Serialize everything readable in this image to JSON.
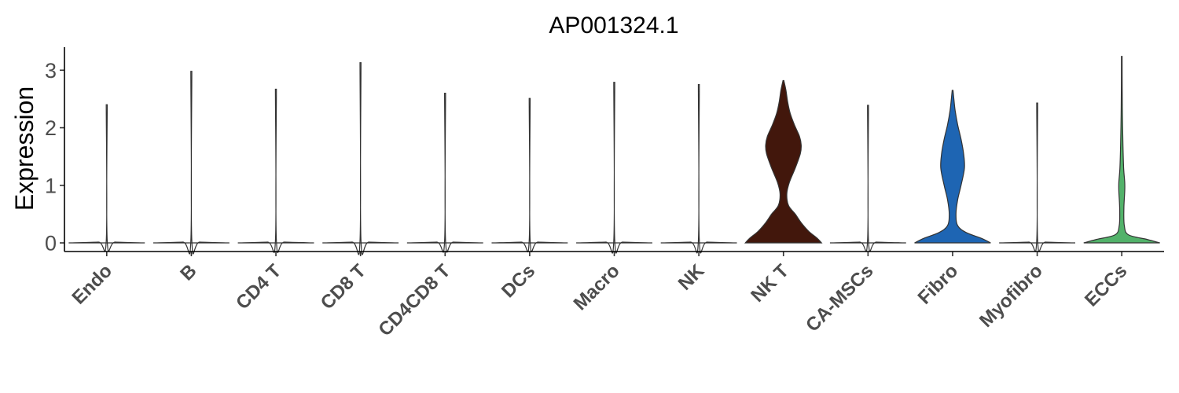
{
  "chart_data": {
    "type": "violin",
    "title": "AP001324.1",
    "xlabel": "",
    "ylabel": "Expression",
    "ylim": [
      -0.15,
      3.4
    ],
    "yticks": [
      0,
      1,
      2,
      3
    ],
    "grid": false,
    "legend": "none",
    "categories": [
      "Endo",
      "B",
      "CD4 T",
      "CD8 T",
      "CD4CD8 T",
      "DCs",
      "Macro",
      "NK",
      "NK T",
      "CA-MSCs",
      "Fibro",
      "Myofibro",
      "ECCs"
    ],
    "series": [
      {
        "category": "Endo",
        "color": "#ffffff",
        "max": 2.4,
        "profile": [
          [
            0.0,
            0.45
          ],
          [
            0.015,
            0.1
          ],
          [
            0.03,
            0.006
          ],
          [
            2.4,
            0.006
          ]
        ]
      },
      {
        "category": "B",
        "color": "#ffffff",
        "max": 2.98,
        "profile": [
          [
            0.0,
            0.45
          ],
          [
            0.015,
            0.1
          ],
          [
            0.03,
            0.006
          ],
          [
            2.98,
            0.006
          ]
        ]
      },
      {
        "category": "CD4 T",
        "color": "#ffffff",
        "max": 2.67,
        "profile": [
          [
            0.0,
            0.45
          ],
          [
            0.015,
            0.1
          ],
          [
            0.03,
            0.006
          ],
          [
            2.67,
            0.006
          ]
        ]
      },
      {
        "category": "CD8 T",
        "color": "#ffffff",
        "max": 3.13,
        "profile": [
          [
            0.0,
            0.45
          ],
          [
            0.015,
            0.1
          ],
          [
            0.03,
            0.006
          ],
          [
            3.13,
            0.006
          ]
        ]
      },
      {
        "category": "CD4CD8 T",
        "color": "#ffffff",
        "max": 2.6,
        "profile": [
          [
            0.0,
            0.45
          ],
          [
            0.015,
            0.1
          ],
          [
            0.03,
            0.006
          ],
          [
            2.6,
            0.006
          ]
        ]
      },
      {
        "category": "DCs",
        "color": "#ffffff",
        "max": 2.51,
        "profile": [
          [
            0.0,
            0.45
          ],
          [
            0.015,
            0.1
          ],
          [
            0.03,
            0.006
          ],
          [
            2.51,
            0.006
          ]
        ]
      },
      {
        "category": "Macro",
        "color": "#ffffff",
        "max": 2.79,
        "profile": [
          [
            0.0,
            0.45
          ],
          [
            0.015,
            0.1
          ],
          [
            0.03,
            0.006
          ],
          [
            2.79,
            0.006
          ]
        ]
      },
      {
        "category": "NK",
        "color": "#ffffff",
        "max": 2.75,
        "profile": [
          [
            0.0,
            0.45
          ],
          [
            0.015,
            0.1
          ],
          [
            0.03,
            0.006
          ],
          [
            2.75,
            0.006
          ]
        ]
      },
      {
        "category": "NK T",
        "color": "#42170c",
        "max": 2.82,
        "profile": [
          [
            0.0,
            0.45
          ],
          [
            0.08,
            0.4
          ],
          [
            0.2,
            0.3
          ],
          [
            0.35,
            0.21
          ],
          [
            0.5,
            0.14
          ],
          [
            0.65,
            0.06
          ],
          [
            0.85,
            0.04
          ],
          [
            1.05,
            0.07
          ],
          [
            1.3,
            0.14
          ],
          [
            1.55,
            0.2
          ],
          [
            1.7,
            0.21
          ],
          [
            1.85,
            0.19
          ],
          [
            2.05,
            0.13
          ],
          [
            2.25,
            0.08
          ],
          [
            2.45,
            0.05
          ],
          [
            2.65,
            0.03
          ],
          [
            2.82,
            0.005
          ]
        ]
      },
      {
        "category": "CA-MSCs",
        "color": "#ffffff",
        "max": 2.39,
        "profile": [
          [
            0.0,
            0.45
          ],
          [
            0.015,
            0.1
          ],
          [
            0.03,
            0.006
          ],
          [
            2.39,
            0.006
          ]
        ]
      },
      {
        "category": "Fibro",
        "color": "#1e65b3",
        "max": 2.65,
        "profile": [
          [
            0.0,
            0.45
          ],
          [
            0.08,
            0.34
          ],
          [
            0.18,
            0.16
          ],
          [
            0.3,
            0.06
          ],
          [
            0.5,
            0.04
          ],
          [
            0.75,
            0.06
          ],
          [
            1.0,
            0.1
          ],
          [
            1.3,
            0.14
          ],
          [
            1.55,
            0.13
          ],
          [
            1.8,
            0.1
          ],
          [
            2.05,
            0.06
          ],
          [
            2.3,
            0.03
          ],
          [
            2.5,
            0.015
          ],
          [
            2.65,
            0.005
          ]
        ]
      },
      {
        "category": "Myofibro",
        "color": "#ffffff",
        "max": 2.43,
        "profile": [
          [
            0.0,
            0.45
          ],
          [
            0.015,
            0.1
          ],
          [
            0.03,
            0.006
          ],
          [
            2.43,
            0.006
          ]
        ]
      },
      {
        "category": "ECCs",
        "color": "#52b26a",
        "max": 3.24,
        "profile": [
          [
            0.0,
            0.45
          ],
          [
            0.06,
            0.3
          ],
          [
            0.14,
            0.08
          ],
          [
            0.3,
            0.03
          ],
          [
            0.6,
            0.025
          ],
          [
            0.9,
            0.035
          ],
          [
            1.05,
            0.035
          ],
          [
            1.3,
            0.022
          ],
          [
            1.7,
            0.014
          ],
          [
            2.2,
            0.008
          ],
          [
            2.7,
            0.005
          ],
          [
            3.24,
            0.004
          ]
        ]
      }
    ]
  }
}
